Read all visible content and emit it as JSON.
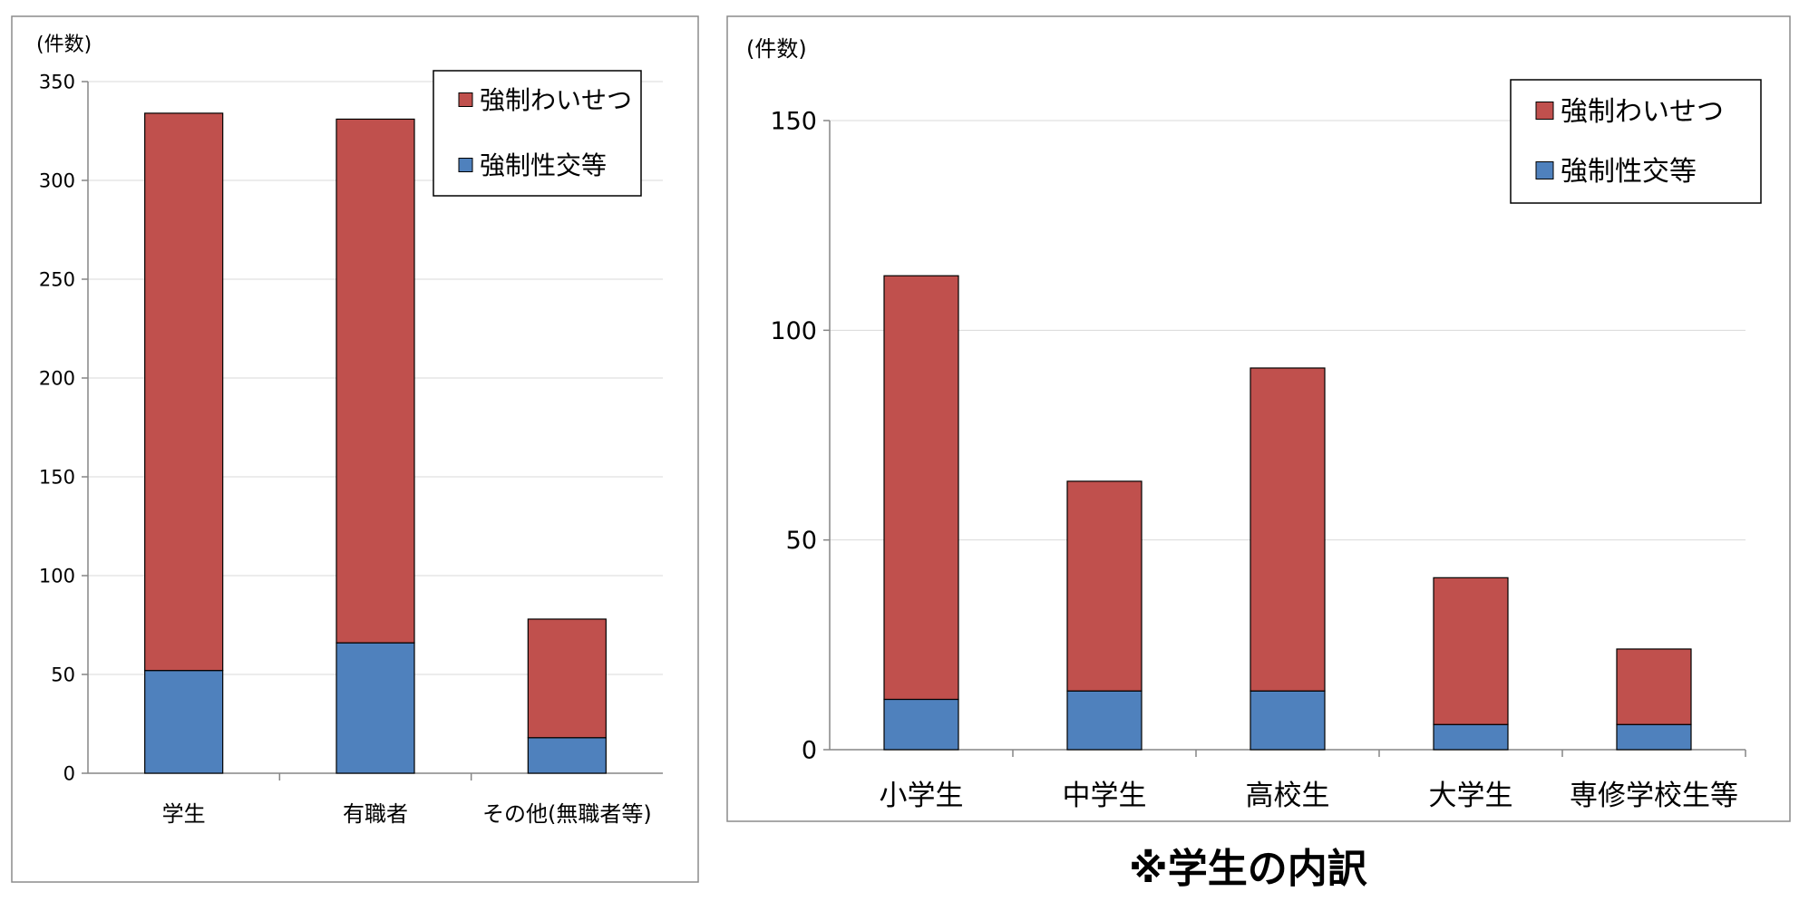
{
  "colors": {
    "red": "#C0504D",
    "blue": "#4F81BD"
  },
  "chart_data": [
    {
      "type": "bar",
      "stacked": true,
      "unit_label": "(件数)",
      "categories": [
        "学生",
        "有職者",
        "その他(無職者等)"
      ],
      "series": [
        {
          "name": "強制性交等",
          "color": "#4F81BD",
          "values": [
            52,
            66,
            18
          ]
        },
        {
          "name": "強制わいせつ",
          "color": "#C0504D",
          "values": [
            282,
            265,
            60
          ]
        }
      ],
      "ylim": [
        0,
        350
      ],
      "yticks": [
        0,
        50,
        100,
        150,
        200,
        250,
        300,
        350
      ],
      "grid": true,
      "legend_position": "top-right",
      "legend_order": [
        "強制わいせつ",
        "強制性交等"
      ]
    },
    {
      "type": "bar",
      "stacked": true,
      "unit_label": "(件数)",
      "categories": [
        "小学生",
        "中学生",
        "高校生",
        "大学生",
        "専修学校生等"
      ],
      "series": [
        {
          "name": "強制性交等",
          "color": "#4F81BD",
          "values": [
            12,
            14,
            14,
            6,
            6
          ]
        },
        {
          "name": "強制わいせつ",
          "color": "#C0504D",
          "values": [
            101,
            50,
            77,
            35,
            18
          ]
        }
      ],
      "ylim": [
        0,
        150
      ],
      "yticks": [
        0,
        50,
        100,
        150
      ],
      "grid": true,
      "legend_position": "top-right",
      "legend_order": [
        "強制わいせつ",
        "強制性交等"
      ]
    }
  ],
  "caption": "※学生の内訳"
}
